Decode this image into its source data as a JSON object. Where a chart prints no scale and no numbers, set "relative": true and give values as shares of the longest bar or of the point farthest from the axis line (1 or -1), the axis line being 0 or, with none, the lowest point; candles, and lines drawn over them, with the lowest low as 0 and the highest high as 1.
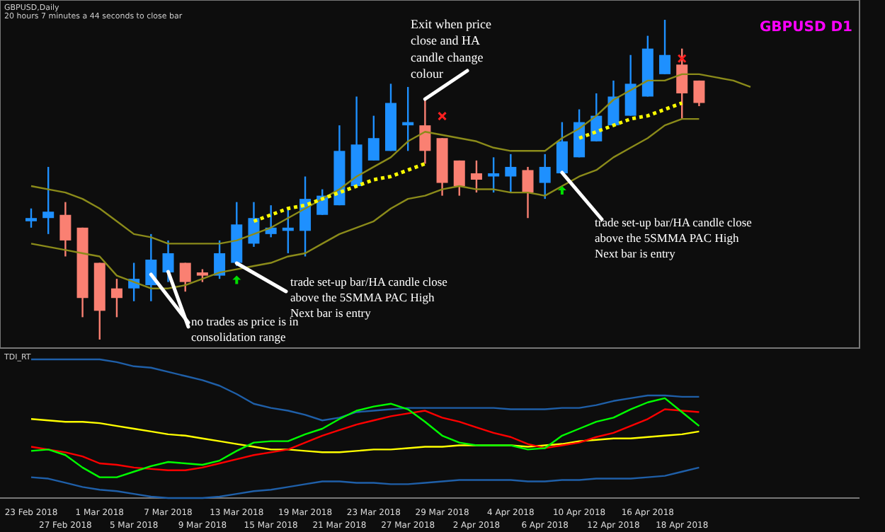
{
  "chart_data": [
    {
      "type": "candlestick",
      "title": "GBPUSD D1",
      "subtitle": "GBPUSD,Daily",
      "relative": true,
      "tick_labels": false,
      "annotations": [
        "20 hours 7 minutes a 44 seconds to close bar",
        "Exit when price\nclose and HA\ncandle change\ncolour",
        "trade set-up bar/HA candle close\nabove the 5SMMA PAC High\nNext bar is entry",
        "no trades as price is in\nconsolidation range",
        "trade set-up bar/HA candle close\nabove the 5SMMA PAC High\nNext bar is entry"
      ],
      "categories": [
        null,
        null,
        null,
        null,
        null,
        null,
        null,
        null,
        null,
        null,
        null,
        null,
        null,
        null,
        null,
        null,
        null,
        null,
        null,
        null,
        null,
        null,
        null,
        null,
        null,
        null,
        null,
        null,
        null,
        null,
        null,
        null,
        null,
        null,
        null,
        null,
        null,
        null,
        null,
        null,
        null,
        null,
        null
      ],
      "ohlc": [
        [
          0.37,
          0.41,
          0.35,
          0.38
        ],
        [
          0.38,
          0.54,
          0.33,
          0.4
        ],
        [
          0.39,
          0.43,
          0.26,
          0.31
        ],
        [
          0.35,
          0.35,
          0.07,
          0.13
        ],
        [
          0.24,
          0.24,
          0,
          0.09
        ],
        [
          0.16,
          0.19,
          0.07,
          0.13
        ],
        [
          0.16,
          0.24,
          0.12,
          0.19
        ],
        [
          0.17,
          0.33,
          0.12,
          0.25
        ],
        [
          0.21,
          0.31,
          0.18,
          0.27
        ],
        [
          0.24,
          0.24,
          0.15,
          0.18
        ],
        [
          0.21,
          0.22,
          0.18,
          0.2
        ],
        [
          0.2,
          0.31,
          0.19,
          0.27
        ],
        [
          0.24,
          0.43,
          0.23,
          0.36
        ],
        [
          0.3,
          0.43,
          0.29,
          0.38
        ],
        [
          0.33,
          0.42,
          0.32,
          0.35
        ],
        [
          0.34,
          0.41,
          0.27,
          0.35
        ],
        [
          0.34,
          0.51,
          0.26,
          0.44
        ],
        [
          0.39,
          0.47,
          0.39,
          0.45
        ],
        [
          0.42,
          0.67,
          0.42,
          0.59
        ],
        [
          0.48,
          0.76,
          0.48,
          0.61
        ],
        [
          0.56,
          0.7,
          0.56,
          0.63
        ],
        [
          0.59,
          0.8,
          0.59,
          0.74
        ],
        [
          0.67,
          0.79,
          0.59,
          0.68
        ],
        [
          0.67,
          0.75,
          0.55,
          0.59
        ],
        [
          0.63,
          0.63,
          0.45,
          0.49
        ],
        [
          0.56,
          0.56,
          0.45,
          0.48
        ],
        [
          0.52,
          0.56,
          0.46,
          0.5
        ],
        [
          0.51,
          0.57,
          0.46,
          0.52
        ],
        [
          0.51,
          0.58,
          0.46,
          0.54
        ],
        [
          0.53,
          0.54,
          0.38,
          0.46
        ],
        [
          0.49,
          0.58,
          0.44,
          0.54
        ],
        [
          0.52,
          0.68,
          0.52,
          0.62
        ],
        [
          0.57,
          0.72,
          0.57,
          0.68
        ],
        [
          0.62,
          0.77,
          0.62,
          0.7
        ],
        [
          0.67,
          0.81,
          0.67,
          0.76
        ],
        [
          0.7,
          0.89,
          0.7,
          0.8
        ],
        [
          0.76,
          0.95,
          0.76,
          0.91
        ],
        [
          0.83,
          1,
          0.83,
          0.89
        ],
        [
          0.86,
          0.91,
          0.69,
          0.77
        ],
        [
          0.81,
          0.81,
          0.73,
          0.74
        ],
        null,
        null,
        null
      ],
      "colors": [
        "#1e90ff",
        "#1e90ff",
        "#fa8072",
        "#fa8072",
        "#fa8072",
        "#fa8072",
        "#1e90ff",
        "#1e90ff",
        "#1e90ff",
        "#fa8072",
        "#fa8072",
        "#1e90ff",
        "#1e90ff",
        "#1e90ff",
        "#1e90ff",
        "#1e90ff",
        "#1e90ff",
        "#1e90ff",
        "#1e90ff",
        "#1e90ff",
        "#1e90ff",
        "#1e90ff",
        "#1e90ff",
        "#fa8072",
        "#fa8072",
        "#fa8072",
        "#fa8072",
        "#1e90ff",
        "#1e90ff",
        "#fa8072",
        "#1e90ff",
        "#1e90ff",
        "#1e90ff",
        "#1e90ff",
        "#1e90ff",
        "#1e90ff",
        "#1e90ff",
        "#1e90ff",
        "#fa8072",
        "#fa8072",
        null,
        null,
        null
      ],
      "series": [
        {
          "type": "line",
          "color": "#8b8b1a",
          "values": [
            0.48,
            0.47,
            0.46,
            0.44,
            0.41,
            0.37,
            0.33,
            0.32,
            0.3,
            0.3,
            0.3,
            0.3,
            0.31,
            0.33,
            0.35,
            0.38,
            0.41,
            0.44,
            0.47,
            0.51,
            0.54,
            0.57,
            0.62,
            0.65,
            0.64,
            0.63,
            0.62,
            0.6,
            0.59,
            0.59,
            0.59,
            0.63,
            0.66,
            0.7,
            0.75,
            0.78,
            0.81,
            0.81,
            0.83,
            0.83,
            0.82,
            0.81,
            0.79
          ]
        },
        {
          "type": "line",
          "color": "#8b8b1a",
          "values": [
            0.3,
            0.29,
            0.28,
            0.27,
            0.26,
            0.2,
            0.18,
            0.16,
            0.16,
            0.17,
            0.19,
            0.21,
            0.22,
            0.23,
            0.24,
            0.26,
            0.27,
            0.3,
            0.33,
            0.35,
            0.37,
            0.41,
            0.44,
            0.45,
            0.47,
            0.48,
            0.47,
            0.47,
            0.46,
            0.46,
            0.45,
            0.48,
            0.51,
            0.53,
            0.57,
            0.6,
            0.63,
            0.67,
            0.69,
            0.69,
            null,
            null,
            null
          ]
        },
        {
          "type": "line",
          "color": "#ffff00",
          "line_style": "dotted",
          "values": [
            null,
            null,
            null,
            null,
            null,
            null,
            null,
            null,
            null,
            null,
            null,
            null,
            null,
            0.37,
            0.39,
            0.41,
            0.42,
            0.44,
            0.46,
            0.48,
            0.5,
            0.51,
            0.53,
            0.55,
            null,
            null,
            null,
            null,
            null,
            null,
            null,
            null,
            0.63,
            0.65,
            0.67,
            0.69,
            0.7,
            0.72,
            0.74,
            null,
            null,
            null,
            null
          ]
        }
      ]
    },
    {
      "type": "line",
      "subtitle": "TDI_RT",
      "relative": true,
      "tick_labels": "x",
      "categories": [
        "23 Feb 2018",
        null,
        "27 Feb 2018",
        null,
        "1 Mar 2018",
        null,
        "5 Mar 2018",
        null,
        "7 Mar 2018",
        null,
        "9 Mar 2018",
        null,
        "13 Mar 2018",
        null,
        "15 Mar 2018",
        null,
        "19 Mar 2018",
        null,
        "21 Mar 2018",
        null,
        "23 Mar 2018",
        null,
        "27 Mar 2018",
        null,
        "29 Mar 2018",
        null,
        "2 Apr 2018",
        null,
        "4 Apr 2018",
        null,
        "6 Apr 2018",
        null,
        "10 Apr 2018",
        null,
        "12 Apr 2018",
        null,
        "16 Apr 2018",
        null,
        "18 Apr 2018",
        null,
        null,
        null,
        null
      ],
      "series": [
        {
          "type": "line",
          "color": "#1f5fa8",
          "values": [
            1,
            1,
            1,
            1,
            1,
            0.98,
            0.95,
            0.94,
            0.91,
            0.88,
            0.85,
            0.81,
            0.75,
            0.68,
            0.65,
            0.63,
            0.6,
            0.56,
            0.58,
            0.62,
            0.63,
            0.64,
            0.65,
            0.65,
            0.65,
            0.65,
            0.65,
            0.65,
            0.64,
            0.64,
            0.64,
            0.65,
            0.65,
            0.67,
            0.7,
            0.72,
            0.74,
            0.74,
            0.73,
            0.73,
            null,
            null,
            null
          ]
        },
        {
          "type": "line",
          "color": "#1f5fa8",
          "values": [
            0.15,
            0.14,
            0.11,
            0.08,
            0.06,
            0.05,
            0.03,
            0.01,
            0,
            0,
            0,
            0.01,
            0.03,
            0.05,
            0.06,
            0.08,
            0.1,
            0.12,
            0.12,
            0.11,
            0.11,
            0.1,
            0.1,
            0.11,
            0.12,
            0.13,
            0.13,
            0.13,
            0.13,
            0.12,
            0.12,
            0.13,
            0.13,
            0.14,
            0.14,
            0.14,
            0.15,
            0.16,
            0.19,
            0.22,
            null,
            null,
            null
          ]
        },
        {
          "type": "line",
          "color": "#ffff00",
          "values": [
            0.57,
            0.56,
            0.55,
            0.55,
            0.54,
            0.52,
            0.5,
            0.48,
            0.46,
            0.45,
            0.43,
            0.41,
            0.39,
            0.37,
            0.35,
            0.35,
            0.34,
            0.33,
            0.33,
            0.34,
            0.35,
            0.35,
            0.36,
            0.37,
            0.37,
            0.38,
            0.38,
            0.38,
            0.38,
            0.37,
            0.38,
            0.39,
            0.41,
            0.42,
            0.43,
            0.43,
            0.44,
            0.45,
            0.46,
            0.48,
            null,
            null,
            null
          ]
        },
        {
          "type": "line",
          "color": "#ff0000",
          "values": [
            0.37,
            0.35,
            0.33,
            0.3,
            0.25,
            0.24,
            0.22,
            0.21,
            0.2,
            0.2,
            0.22,
            0.25,
            0.28,
            0.31,
            0.33,
            0.35,
            0.4,
            0.45,
            0.49,
            0.53,
            0.56,
            0.59,
            0.61,
            0.63,
            0.58,
            0.55,
            0.51,
            0.47,
            0.44,
            0.39,
            0.36,
            0.38,
            0.4,
            0.44,
            0.47,
            0.52,
            0.57,
            0.64,
            0.63,
            0.62,
            null,
            null,
            null
          ]
        },
        {
          "type": "line",
          "color": "#00ff00",
          "values": [
            0.34,
            0.35,
            0.31,
            0.22,
            0.15,
            0.15,
            0.19,
            0.23,
            0.26,
            0.25,
            0.24,
            0.27,
            0.34,
            0.4,
            0.41,
            0.41,
            0.46,
            0.5,
            0.57,
            0.63,
            0.66,
            0.68,
            0.64,
            0.55,
            0.45,
            0.4,
            0.38,
            0.38,
            0.38,
            0.35,
            0.36,
            0.45,
            0.5,
            0.55,
            0.58,
            0.64,
            0.69,
            0.72,
            0.62,
            0.52,
            null,
            null,
            null
          ]
        }
      ]
    }
  ]
}
